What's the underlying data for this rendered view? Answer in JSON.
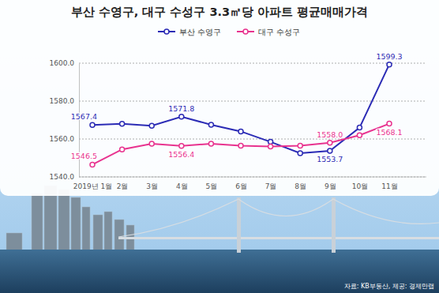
{
  "chart_data": {
    "type": "line",
    "title": "부산 수영구, 대구 수성구 3.3㎡당 아파트 평균매매가격",
    "source": "자료: KB부동산, 제공: 경제만랩",
    "categories": [
      "2019년 1월",
      "2월",
      "3월",
      "4월",
      "5월",
      "6월",
      "7월",
      "8월",
      "9월",
      "10월",
      "11월"
    ],
    "series": [
      {
        "name": "부산 수영구",
        "color": "#2b2bb5",
        "marker": "circle",
        "values": [
          1567.4,
          1568.0,
          1567.0,
          1571.8,
          1567.5,
          1564.0,
          1558.5,
          1552.5,
          1553.7,
          1566.0,
          1599.3
        ],
        "value_labels": [
          "1567.4",
          null,
          null,
          "1571.8",
          null,
          null,
          null,
          null,
          "1553.7",
          null,
          "1599.3"
        ]
      },
      {
        "name": "대구 수성구",
        "color": "#e8338f",
        "marker": "circle",
        "values": [
          1546.5,
          1554.5,
          1557.5,
          1556.4,
          1557.5,
          1556.5,
          1556.0,
          1556.5,
          1558.0,
          1562.0,
          1568.1
        ],
        "value_labels": [
          "1546.5",
          null,
          null,
          "1556.4",
          null,
          null,
          null,
          null,
          "1558.0",
          null,
          "1568.1"
        ]
      }
    ],
    "ylim": [
      1540,
      1600
    ],
    "yticks": [
      {
        "value": 1540,
        "label": "1540.0"
      },
      {
        "value": 1560,
        "label": "1560.0"
      },
      {
        "value": 1580,
        "label": "1580.0"
      },
      {
        "value": 1600,
        "label": "1600.0"
      }
    ],
    "grid": true,
    "legend": "top",
    "data_labels": true
  }
}
